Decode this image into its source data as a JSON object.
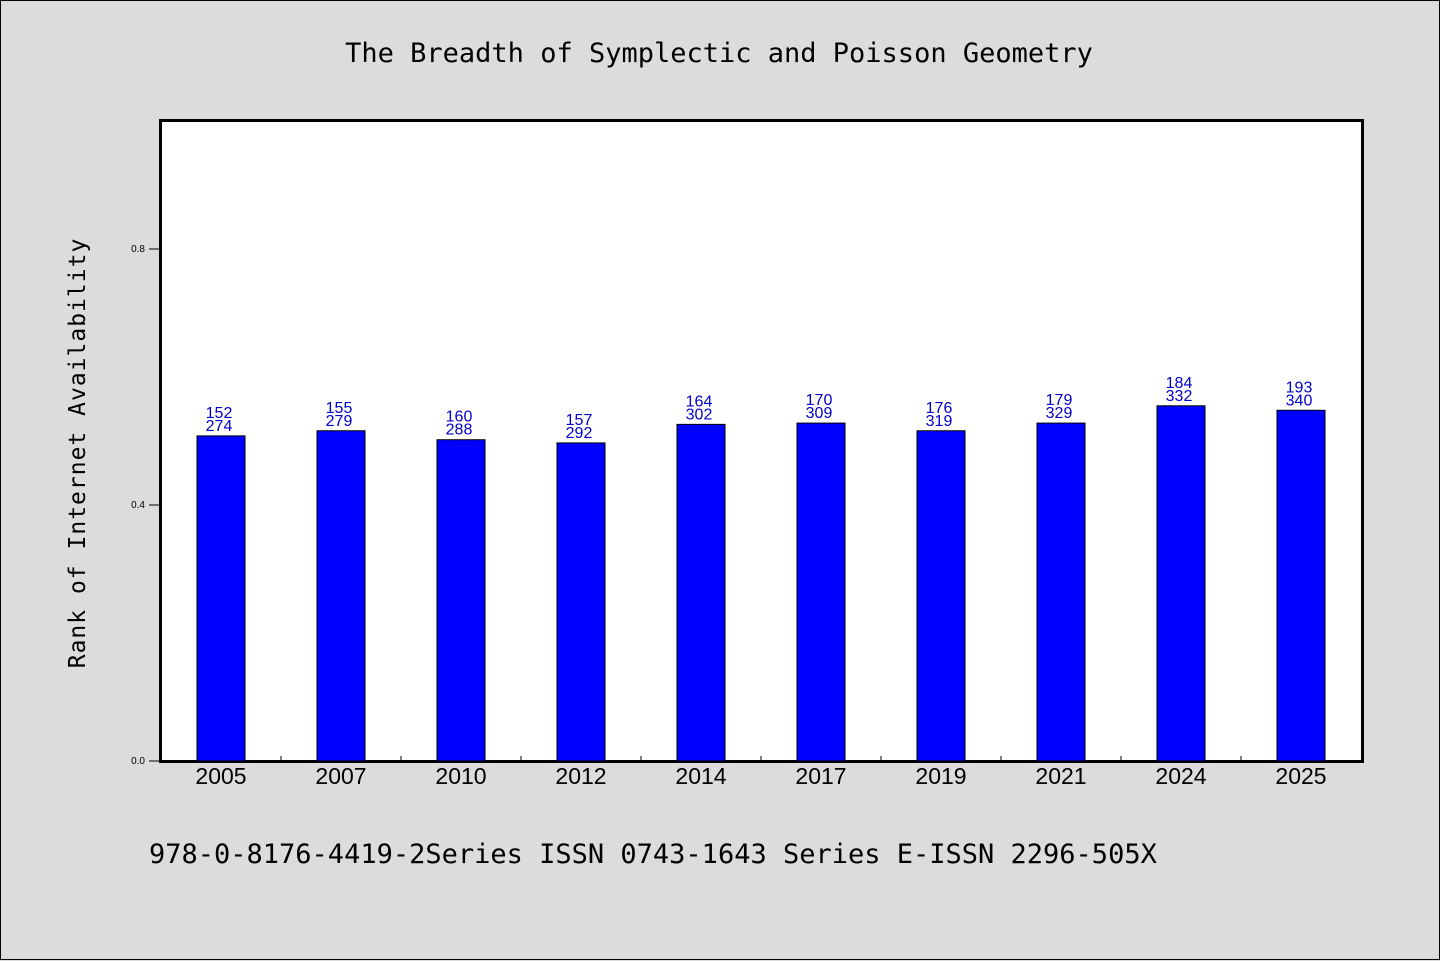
{
  "chart_data": {
    "type": "bar",
    "title": "The Breadth of Symplectic and Poisson Geometry",
    "xlabel": "",
    "ylabel": "Rank of Internet Availability",
    "footer": "978-0-8176-4419-2Series ISSN 0743-1643 Series E-ISSN 2296-505X",
    "categories": [
      "2005",
      "2007",
      "2010",
      "2012",
      "2014",
      "2017",
      "2019",
      "2021",
      "2024",
      "2025"
    ],
    "values": [
      0.508,
      0.516,
      0.502,
      0.497,
      0.526,
      0.528,
      0.516,
      0.528,
      0.555,
      0.548
    ],
    "data_labels": [
      [
        "152",
        "274"
      ],
      [
        "155",
        "279"
      ],
      [
        "160",
        "288"
      ],
      [
        "157",
        "292"
      ],
      [
        "164",
        "302"
      ],
      [
        "170",
        "309"
      ],
      [
        "176",
        "319"
      ],
      [
        "179",
        "329"
      ],
      [
        "184",
        "332"
      ],
      [
        "193",
        "340"
      ]
    ],
    "ylim": [
      0,
      1.0
    ],
    "yticks": [
      0.0,
      0.4,
      0.8
    ],
    "ytick_labels": [
      "0.0",
      "0.4",
      "0.8"
    ],
    "grid": false,
    "colors": {
      "bar": "#0000ff",
      "bar_edge": "#000000",
      "data_label": "#0000cc",
      "background": "#dcdcdc",
      "plot_area": "#ffffff"
    }
  }
}
